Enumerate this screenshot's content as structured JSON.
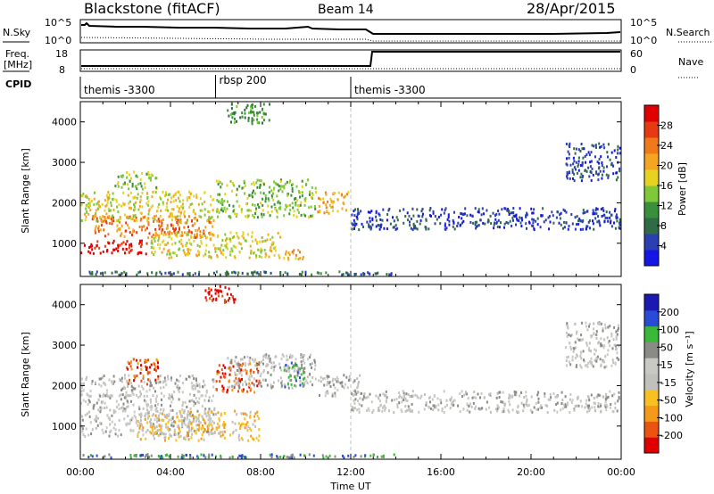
{
  "header": {
    "station": "Blackstone (fitACF)",
    "beam": "Beam 14",
    "date": "28/Apr/2015"
  },
  "summary_labels": {
    "nsky": "N.Sky",
    "nsky_tick_top": "10^5",
    "nsky_tick_bottom": "10^0",
    "nsearch": "N.Search",
    "nsearch_tick_top": "10^5",
    "nsearch_tick_bottom": "10^0",
    "freq_line1": "Freq.",
    "freq_line2": "[MHz]",
    "freq_tick_top": "18",
    "freq_tick_bottom": "8",
    "nave": "Nave",
    "nave_tick_top": "60",
    "nave_tick_bottom": "0",
    "cpid": "CPID"
  },
  "cpid_segments": [
    {
      "label": "themis -3300",
      "start_hour": 0
    },
    {
      "label": "rbsp 200",
      "start_hour": 6
    },
    {
      "label": "themis -3300",
      "start_hour": 12
    }
  ],
  "colors": {
    "power": [
      "#1515e6",
      "#2a3fb0",
      "#2f6b45",
      "#3a8f3a",
      "#7ec83a",
      "#e6d21f",
      "#f4a623",
      "#f07a1a",
      "#e83a12",
      "#e00000"
    ],
    "velocity": [
      "#e00000",
      "#ec5210",
      "#f49a18",
      "#f8c020",
      "#c0c0bc",
      "#c8c8c4",
      "#8a8a86",
      "#3ab83a",
      "#2a4ad8",
      "#1a1ab0"
    ],
    "grey_line": "#bfbfbf"
  },
  "chart_data": [
    {
      "type": "heatmap",
      "panel": "power",
      "xlabel": "",
      "ylabel": "Slant Range [km]",
      "colorbar_label": "Power [dB]",
      "colorbar_ticks": [
        "4",
        "8",
        "12",
        "16",
        "20",
        "24",
        "28"
      ],
      "xlim_hours": [
        0,
        24
      ],
      "ylim_km": [
        180,
        4500
      ],
      "y_ticks": [
        "1000",
        "2000",
        "3000",
        "4000"
      ],
      "regions": [
        {
          "t0": 0.0,
          "t1": 3.0,
          "r0": 700,
          "r1": 1100,
          "level": 9
        },
        {
          "t0": 0.5,
          "t1": 6.0,
          "r0": 1100,
          "r1": 1700,
          "level": 7
        },
        {
          "t0": 0.0,
          "t1": 6.0,
          "r0": 1500,
          "r1": 2300,
          "level": 5
        },
        {
          "t0": 1.5,
          "t1": 3.5,
          "r0": 2300,
          "r1": 2800,
          "level": 4
        },
        {
          "t0": 3.0,
          "t1": 9.0,
          "r0": 600,
          "r1": 1300,
          "level": 5
        },
        {
          "t0": 6.0,
          "t1": 10.5,
          "r0": 1600,
          "r1": 2600,
          "level": 4
        },
        {
          "t0": 9.0,
          "t1": 10.0,
          "r0": 550,
          "r1": 900,
          "level": 6
        },
        {
          "t0": 10.5,
          "t1": 12.0,
          "r0": 1700,
          "r1": 2300,
          "level": 6
        },
        {
          "t0": 12.0,
          "t1": 24.0,
          "r0": 1300,
          "r1": 1900,
          "level": 1
        },
        {
          "t0": 21.5,
          "t1": 24.0,
          "r0": 2500,
          "r1": 3500,
          "level": 1
        },
        {
          "t0": 6.5,
          "t1": 8.5,
          "r0": 3900,
          "r1": 4500,
          "level": 3
        },
        {
          "t0": 0.0,
          "t1": 14.0,
          "r0": 180,
          "r1": 330,
          "level": 2
        }
      ],
      "grid": false
    },
    {
      "type": "heatmap",
      "panel": "velocity",
      "xlabel": "Time UT",
      "ylabel": "Slant Range [km]",
      "colorbar_label": "Velocity [m s⁻¹]",
      "colorbar_ticks": [
        "-200",
        "-100",
        "-50",
        "-15",
        "15",
        "50",
        "100",
        "200"
      ],
      "xlim_hours": [
        0,
        24
      ],
      "x_ticks": [
        "00:00",
        "04:00",
        "08:00",
        "12:00",
        "16:00",
        "20:00",
        "00:00"
      ],
      "ylim_km": [
        180,
        4500
      ],
      "y_ticks": [
        "1000",
        "2000",
        "3000",
        "4000"
      ],
      "regions": [
        {
          "t0": 0.0,
          "t1": 6.0,
          "r0": 700,
          "r1": 2300,
          "level": 5
        },
        {
          "t0": 2.0,
          "t1": 3.5,
          "r0": 2000,
          "r1": 2700,
          "level": 1
        },
        {
          "t0": 2.5,
          "t1": 8.0,
          "r0": 600,
          "r1": 1400,
          "level": 3
        },
        {
          "t0": 6.0,
          "t1": 8.0,
          "r0": 1800,
          "r1": 2600,
          "level": 1
        },
        {
          "t0": 6.5,
          "t1": 10.5,
          "r0": 1900,
          "r1": 2800,
          "level": 5
        },
        {
          "t0": 9.0,
          "t1": 10.0,
          "r0": 1900,
          "r1": 2600,
          "level": 7
        },
        {
          "t0": 10.5,
          "t1": 12.5,
          "r0": 1700,
          "r1": 2300,
          "level": 5
        },
        {
          "t0": 12.0,
          "t1": 24.0,
          "r0": 1300,
          "r1": 1900,
          "level": 5
        },
        {
          "t0": 21.5,
          "t1": 24.0,
          "r0": 2400,
          "r1": 3600,
          "level": 5
        },
        {
          "t0": 5.5,
          "t1": 7.0,
          "r0": 4000,
          "r1": 4500,
          "level": 0
        },
        {
          "t0": 0.0,
          "t1": 14.0,
          "r0": 180,
          "r1": 330,
          "level": 7
        }
      ],
      "grid": false
    }
  ]
}
